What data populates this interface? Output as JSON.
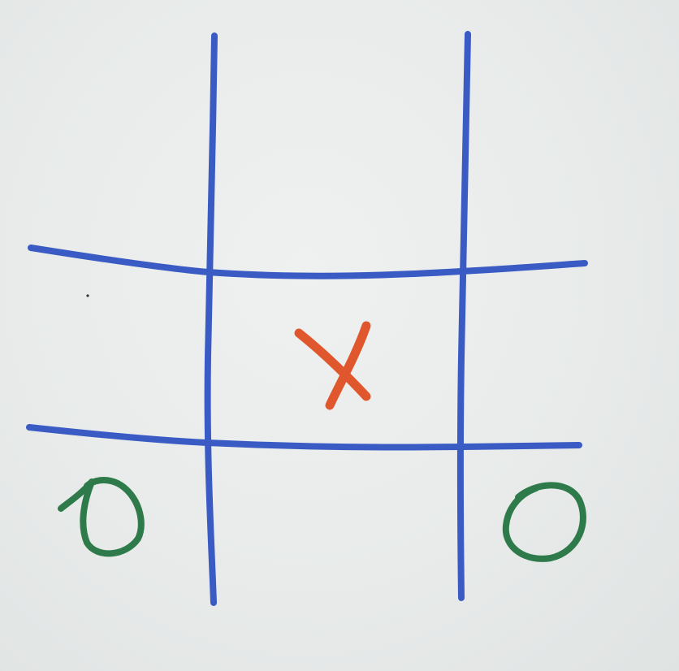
{
  "board": {
    "rows": 3,
    "cols": 3,
    "cells": [
      [
        "",
        "",
        ""
      ],
      [
        "",
        "X",
        ""
      ],
      [
        "O",
        "",
        "O"
      ]
    ]
  },
  "colors": {
    "paper": "#e9ecea",
    "grid": "#3a5bc4",
    "x_mark": "#e0572e",
    "o_mark": "#2f7a4a"
  },
  "icons": {
    "x_mark": "x-mark-icon",
    "o_mark": "o-mark-icon"
  }
}
